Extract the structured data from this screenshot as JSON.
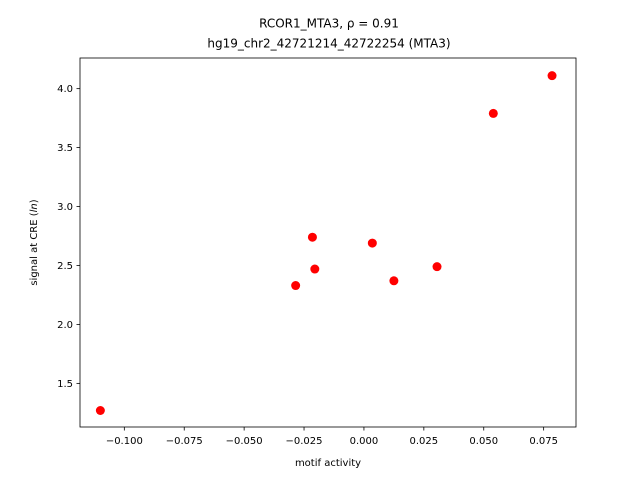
{
  "chart_data": {
    "type": "scatter",
    "title_lines": [
      "RCOR1_MTA3, ρ = 0.91",
      "hg19_chr2_42721214_42722254 (MTA3)"
    ],
    "xlabel": "motif activity",
    "ylabel_prefix": "signal at CRE (",
    "ylabel_italic": "ln",
    "ylabel_suffix": ")",
    "xlim": [
      -0.1185,
      0.0885
    ],
    "ylim": [
      1.13,
      4.26
    ],
    "xticks": [
      -0.1,
      -0.075,
      -0.05,
      -0.025,
      0.0,
      0.025,
      0.05,
      0.075
    ],
    "xtick_labels": [
      "−0.100",
      "−0.075",
      "−0.050",
      "−0.025",
      "0.000",
      "0.025",
      "0.050",
      "0.075"
    ],
    "yticks": [
      1.5,
      2.0,
      2.5,
      3.0,
      3.5,
      4.0
    ],
    "ytick_labels": [
      "1.5",
      "2.0",
      "2.5",
      "3.0",
      "3.5",
      "4.0"
    ],
    "grid": false,
    "marker_color": "#ff0000",
    "points": [
      {
        "x": -0.11,
        "y": 1.27
      },
      {
        "x": -0.0285,
        "y": 2.33
      },
      {
        "x": -0.0215,
        "y": 2.74
      },
      {
        "x": -0.0205,
        "y": 2.47
      },
      {
        "x": 0.0035,
        "y": 2.69
      },
      {
        "x": 0.0125,
        "y": 2.37
      },
      {
        "x": 0.0305,
        "y": 2.49
      },
      {
        "x": 0.054,
        "y": 3.79
      },
      {
        "x": 0.0785,
        "y": 4.11
      }
    ]
  }
}
